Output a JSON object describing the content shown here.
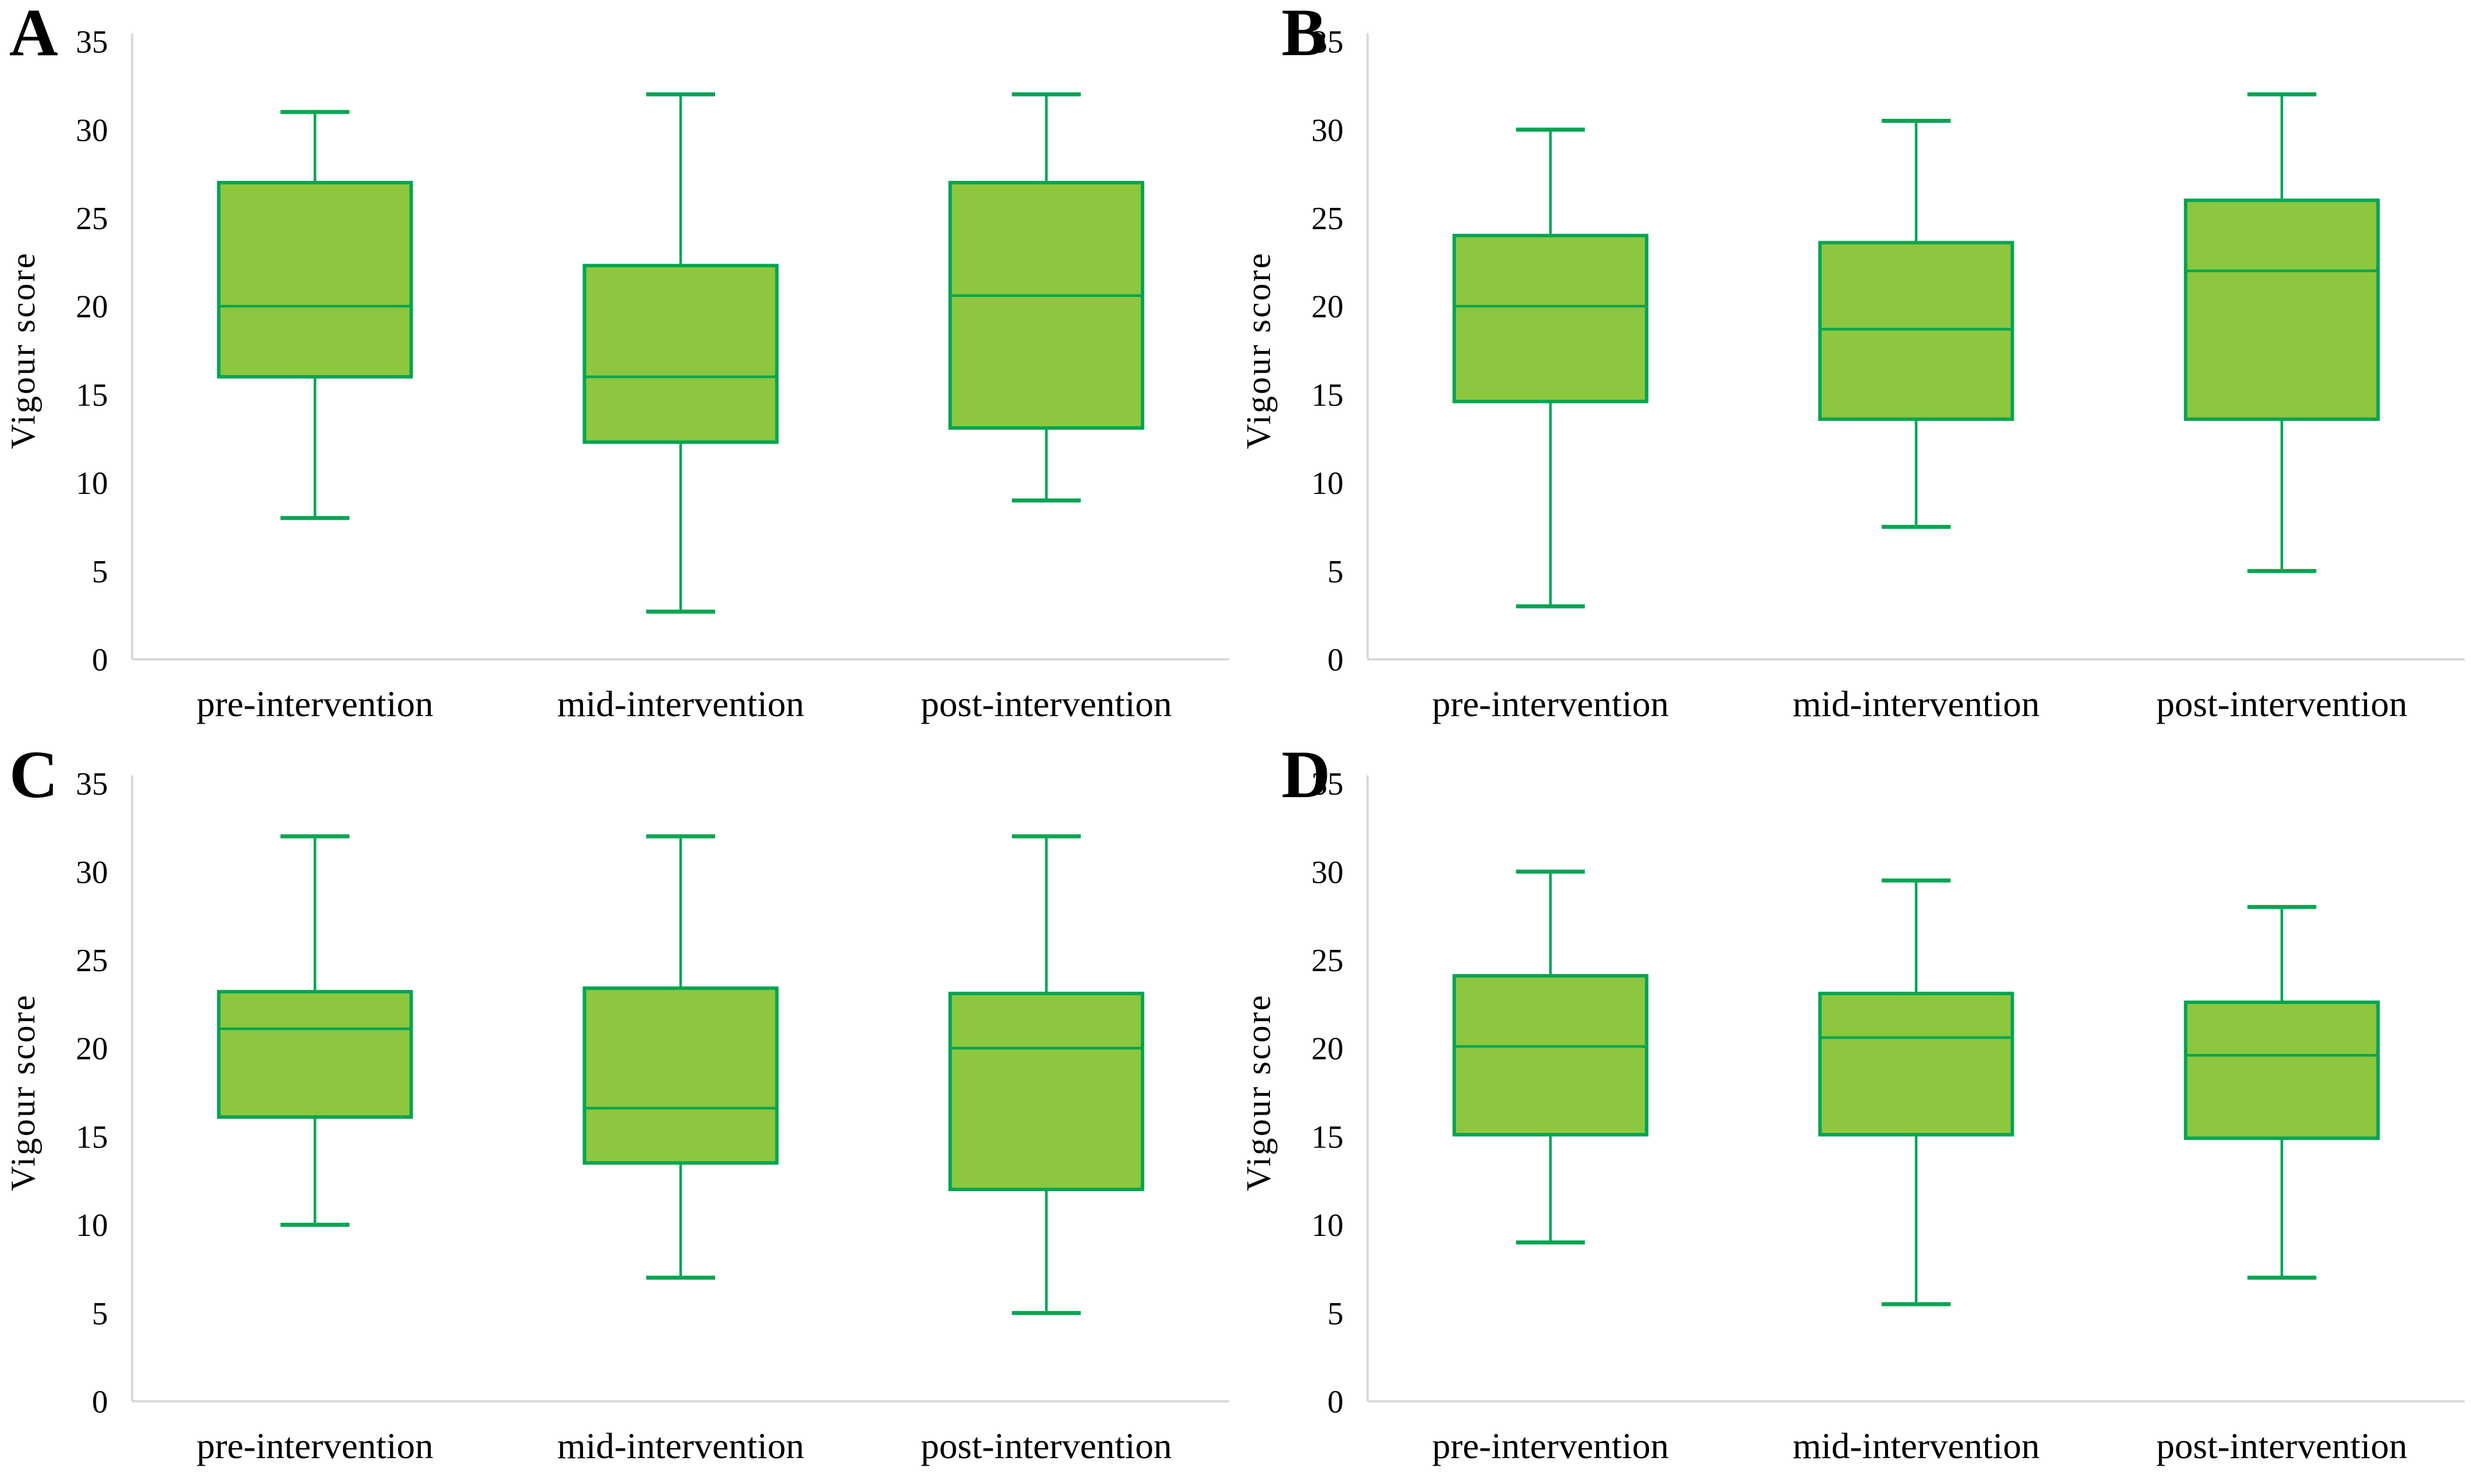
{
  "style": {
    "box_fill": "#8dc63f",
    "box_stroke": "#00a551",
    "whisker_color": "#00a551",
    "axis_line_color": "#d9d9d9",
    "text_color": "#000000"
  },
  "chart_data": [
    {
      "type": "boxplot",
      "panel": "A",
      "title": "",
      "ylabel": "Vigour score",
      "xlabel": "",
      "ylim": [
        0,
        35
      ],
      "yticks": [
        0,
        5,
        10,
        15,
        20,
        25,
        30,
        35
      ],
      "grid": false,
      "categories": [
        "pre-intervention",
        "mid-intervention",
        "post-intervention"
      ],
      "series": [
        {
          "name": "pre-intervention",
          "min": 8,
          "q1": 16,
          "median": 20,
          "q3": 27,
          "max": 31
        },
        {
          "name": "mid-intervention",
          "min": 2.7,
          "q1": 12.3,
          "median": 16,
          "q3": 22.3,
          "max": 32
        },
        {
          "name": "post-intervention",
          "min": 9,
          "q1": 13.1,
          "median": 20.6,
          "q3": 27,
          "max": 32
        }
      ]
    },
    {
      "type": "boxplot",
      "panel": "B",
      "title": "",
      "ylabel": "Vigour score",
      "xlabel": "",
      "ylim": [
        0,
        35
      ],
      "yticks": [
        0,
        5,
        10,
        15,
        20,
        25,
        30,
        35
      ],
      "grid": false,
      "categories": [
        "pre-intervention",
        "mid-intervention",
        "post-intervention"
      ],
      "series": [
        {
          "name": "pre-intervention",
          "min": 3,
          "q1": 14.6,
          "median": 20,
          "q3": 24,
          "max": 30
        },
        {
          "name": "mid-intervention",
          "min": 7.5,
          "q1": 13.6,
          "median": 18.7,
          "q3": 23.6,
          "max": 30.5
        },
        {
          "name": "post-intervention",
          "min": 5,
          "q1": 13.6,
          "median": 22,
          "q3": 26,
          "max": 32
        }
      ]
    },
    {
      "type": "boxplot",
      "panel": "C",
      "title": "",
      "ylabel": "Vigour score",
      "xlabel": "",
      "ylim": [
        0,
        35
      ],
      "yticks": [
        0,
        5,
        10,
        15,
        20,
        25,
        30,
        35
      ],
      "grid": false,
      "categories": [
        "pre-intervention",
        "mid-intervention",
        "post-intervention"
      ],
      "series": [
        {
          "name": "pre-intervention",
          "min": 10,
          "q1": 16.1,
          "median": 21.1,
          "q3": 23.2,
          "max": 32
        },
        {
          "name": "mid-intervention",
          "min": 7,
          "q1": 13.5,
          "median": 16.6,
          "q3": 23.4,
          "max": 32
        },
        {
          "name": "post-intervention",
          "min": 5,
          "q1": 12,
          "median": 20,
          "q3": 23.1,
          "max": 32
        }
      ]
    },
    {
      "type": "boxplot",
      "panel": "D",
      "title": "",
      "ylabel": "Vigour score",
      "xlabel": "",
      "ylim": [
        0,
        35
      ],
      "yticks": [
        0,
        5,
        10,
        15,
        20,
        25,
        30,
        35
      ],
      "grid": false,
      "categories": [
        "pre-intervention",
        "mid-intervention",
        "post-intervention"
      ],
      "series": [
        {
          "name": "pre-intervention",
          "min": 9,
          "q1": 15.1,
          "median": 20.1,
          "q3": 24.1,
          "max": 30
        },
        {
          "name": "mid-intervention",
          "min": 5.5,
          "q1": 15.1,
          "median": 20.6,
          "q3": 23.1,
          "max": 29.5
        },
        {
          "name": "post-intervention",
          "min": 7,
          "q1": 14.9,
          "median": 19.6,
          "q3": 22.6,
          "max": 28
        }
      ]
    }
  ]
}
